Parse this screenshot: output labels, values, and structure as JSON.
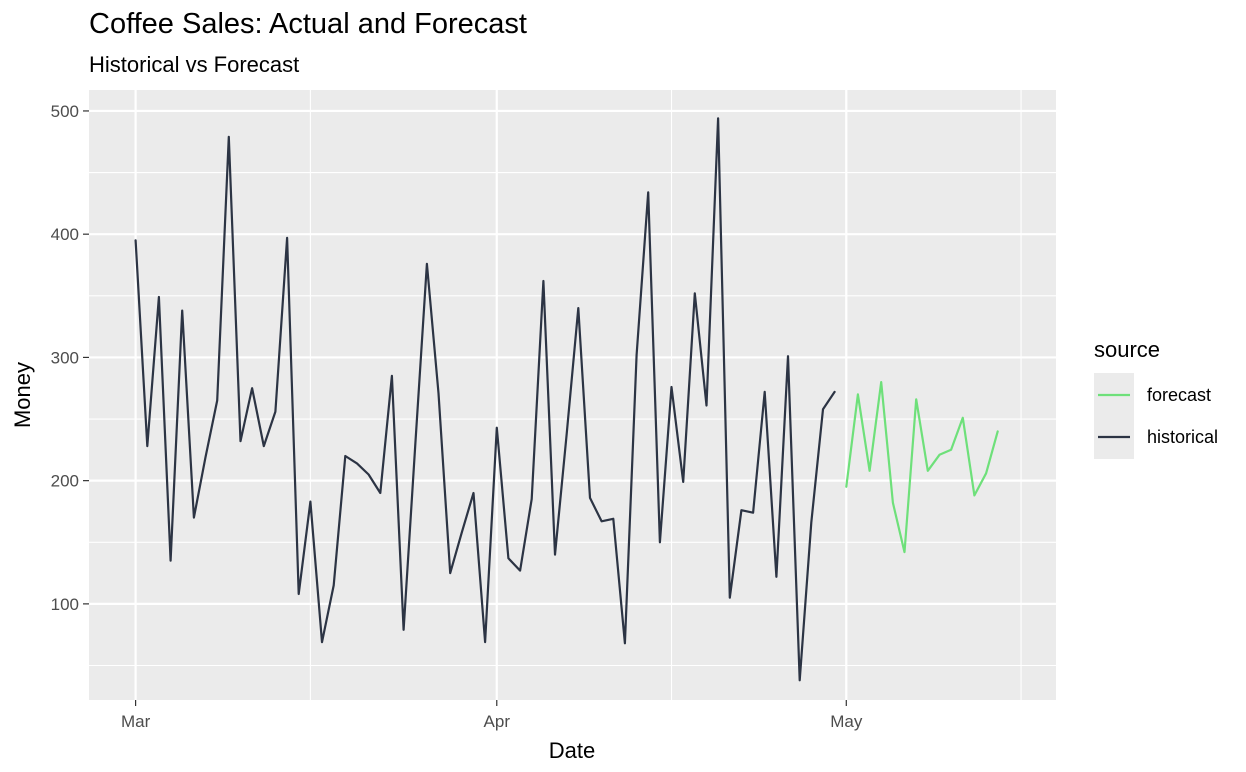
{
  "chart_data": {
    "type": "line",
    "title": "Coffee Sales: Actual and Forecast",
    "subtitle": "Historical vs Forecast",
    "xlabel": "Date",
    "ylabel": "Money",
    "x_ticks": [
      {
        "date": "2024-03-01",
        "label": "Mar"
      },
      {
        "date": "2024-04-01",
        "label": "Apr"
      },
      {
        "date": "2024-05-01",
        "label": "May"
      }
    ],
    "x_minor_dates": [
      "2024-03-16",
      "2024-04-16",
      "2024-05-16"
    ],
    "xlim": [
      "2024-02-26",
      "2024-05-19"
    ],
    "y_ticks": [
      100,
      200,
      300,
      400,
      500
    ],
    "ylim": [
      22,
      517
    ],
    "grid": true,
    "legend": {
      "title": "source",
      "position": "right"
    },
    "series": [
      {
        "name": "forecast",
        "color": "#6EE07A",
        "x": [
          "2024-05-01",
          "2024-05-02",
          "2024-05-03",
          "2024-05-04",
          "2024-05-05",
          "2024-05-06",
          "2024-05-07",
          "2024-05-08",
          "2024-05-09",
          "2024-05-10",
          "2024-05-11",
          "2024-05-12",
          "2024-05-13",
          "2024-05-14"
        ],
        "y": [
          195,
          270,
          208,
          280,
          182,
          142,
          266,
          208,
          221,
          225,
          251,
          188,
          206,
          240
        ]
      },
      {
        "name": "historical",
        "color": "#2C3444",
        "x": [
          "2024-03-01",
          "2024-03-02",
          "2024-03-03",
          "2024-03-04",
          "2024-03-05",
          "2024-03-06",
          "2024-03-07",
          "2024-03-08",
          "2024-03-09",
          "2024-03-10",
          "2024-03-11",
          "2024-03-12",
          "2024-03-13",
          "2024-03-14",
          "2024-03-15",
          "2024-03-16",
          "2024-03-17",
          "2024-03-18",
          "2024-03-19",
          "2024-03-20",
          "2024-03-21",
          "2024-03-22",
          "2024-03-23",
          "2024-03-24",
          "2024-03-25",
          "2024-03-26",
          "2024-03-27",
          "2024-03-28",
          "2024-03-29",
          "2024-03-30",
          "2024-03-31",
          "2024-04-01",
          "2024-04-02",
          "2024-04-03",
          "2024-04-04",
          "2024-04-05",
          "2024-04-06",
          "2024-04-07",
          "2024-04-08",
          "2024-04-09",
          "2024-04-10",
          "2024-04-11",
          "2024-04-12",
          "2024-04-13",
          "2024-04-14",
          "2024-04-15",
          "2024-04-16",
          "2024-04-17",
          "2024-04-18",
          "2024-04-19",
          "2024-04-20",
          "2024-04-21",
          "2024-04-22",
          "2024-04-23",
          "2024-04-24",
          "2024-04-25",
          "2024-04-26",
          "2024-04-27",
          "2024-04-28",
          "2024-04-29",
          "2024-04-30"
        ],
        "y": [
          395,
          228,
          349,
          135,
          338,
          170,
          219,
          265,
          479,
          232,
          275,
          228,
          256,
          397,
          108,
          183,
          69,
          115,
          220,
          214,
          205,
          190,
          285,
          79,
          228,
          376,
          271,
          125,
          158,
          190,
          69,
          243,
          137,
          127,
          185,
          362,
          140,
          238,
          340,
          186,
          167,
          169,
          68,
          302,
          434,
          150,
          276,
          199,
          352,
          261,
          494,
          105,
          176,
          174,
          272,
          122,
          301,
          38,
          166,
          258,
          272
        ]
      }
    ]
  }
}
